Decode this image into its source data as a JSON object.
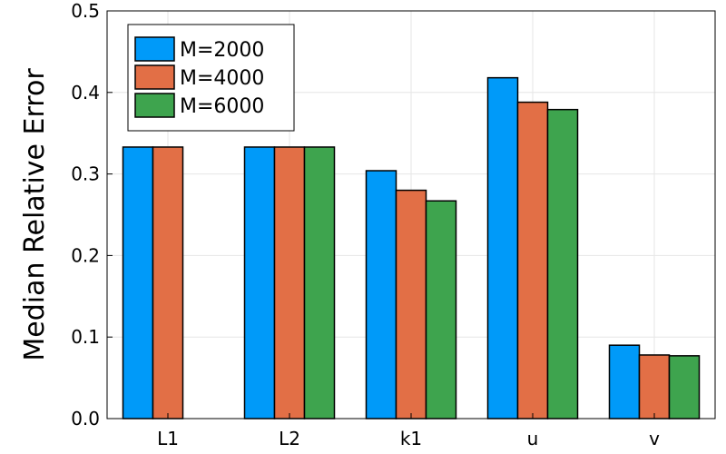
{
  "chart_data": {
    "type": "bar",
    "title": "",
    "xlabel": "",
    "ylabel": "Median Relative Error",
    "ylim": [
      0,
      0.5
    ],
    "yticks": [
      0.0,
      0.1,
      0.2,
      0.3,
      0.4,
      0.5
    ],
    "ytick_labels": [
      "0.0",
      "0.1",
      "0.2",
      "0.3",
      "0.4",
      "0.5"
    ],
    "grid": true,
    "legend_position": "top-left",
    "categories": [
      "L1",
      "L2",
      "k1",
      "u",
      "v"
    ],
    "series": [
      {
        "name": "M=2000",
        "color": "#009af9",
        "values": [
          0.333,
          0.333,
          0.304,
          0.418,
          0.09
        ]
      },
      {
        "name": "M=4000",
        "color": "#e26f46",
        "values": [
          0.333,
          0.333,
          0.28,
          0.388,
          0.078
        ]
      },
      {
        "name": "M=6000",
        "color": "#3ea44e",
        "values": [
          0.0,
          0.333,
          0.267,
          0.379,
          0.077
        ]
      }
    ]
  }
}
